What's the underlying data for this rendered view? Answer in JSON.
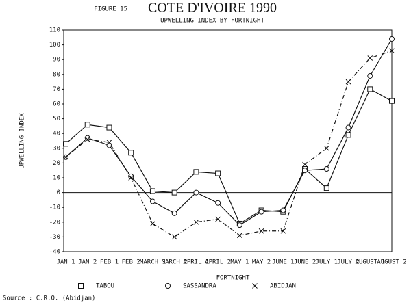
{
  "chart_data": {
    "type": "line",
    "figure_label": "FIGURE 15",
    "title": "COTE D'IVOIRE 1990",
    "subtitle": "UPWELLING INDEX BY FORTNIGHT",
    "y_label": "UPWELLING INDEX",
    "x_label": "FORTNIGHT",
    "source": "Source : C.R.O. (Abidjan)",
    "categories": [
      "JAN 1",
      "JAN 2",
      "FEB 1",
      "FEB 2",
      "MARCH 1",
      "MARCH 2",
      "APRIL 1",
      "APRIL 2",
      "MAY 1",
      "MAY 2",
      "JUNE 1",
      "JUNE 2",
      "JULY 1",
      "JULY 2",
      "AUGUST 1",
      "AUGUST 2"
    ],
    "series": [
      {
        "name": "TABOU",
        "color": "#111111",
        "marker": "square",
        "dash": "none",
        "values": [
          33,
          46,
          44,
          27,
          1,
          0,
          14,
          13,
          -21,
          -12,
          -13,
          16,
          3,
          39,
          70,
          62
        ]
      },
      {
        "name": "SASSANDRA",
        "color": "#111111",
        "marker": "circle",
        "dash": "none",
        "values": [
          24,
          37,
          32,
          11,
          -6,
          -14,
          0,
          -7,
          -22,
          -13,
          -12,
          15,
          16,
          44,
          79,
          104
        ]
      },
      {
        "name": "ABIDJAN",
        "color": "#111111",
        "marker": "x",
        "dash": "6 3 1 3",
        "values": [
          24,
          36,
          34,
          10,
          -21,
          -30,
          -20,
          -18,
          -29,
          -26,
          -26,
          19,
          30,
          75,
          91,
          96
        ]
      }
    ],
    "ylim": [
      -40,
      110
    ],
    "yticks": [
      -40,
      -30,
      -20,
      -10,
      0,
      10,
      20,
      30,
      40,
      50,
      60,
      70,
      80,
      90,
      100,
      110
    ],
    "zero_line": true,
    "legend": "bottom"
  }
}
